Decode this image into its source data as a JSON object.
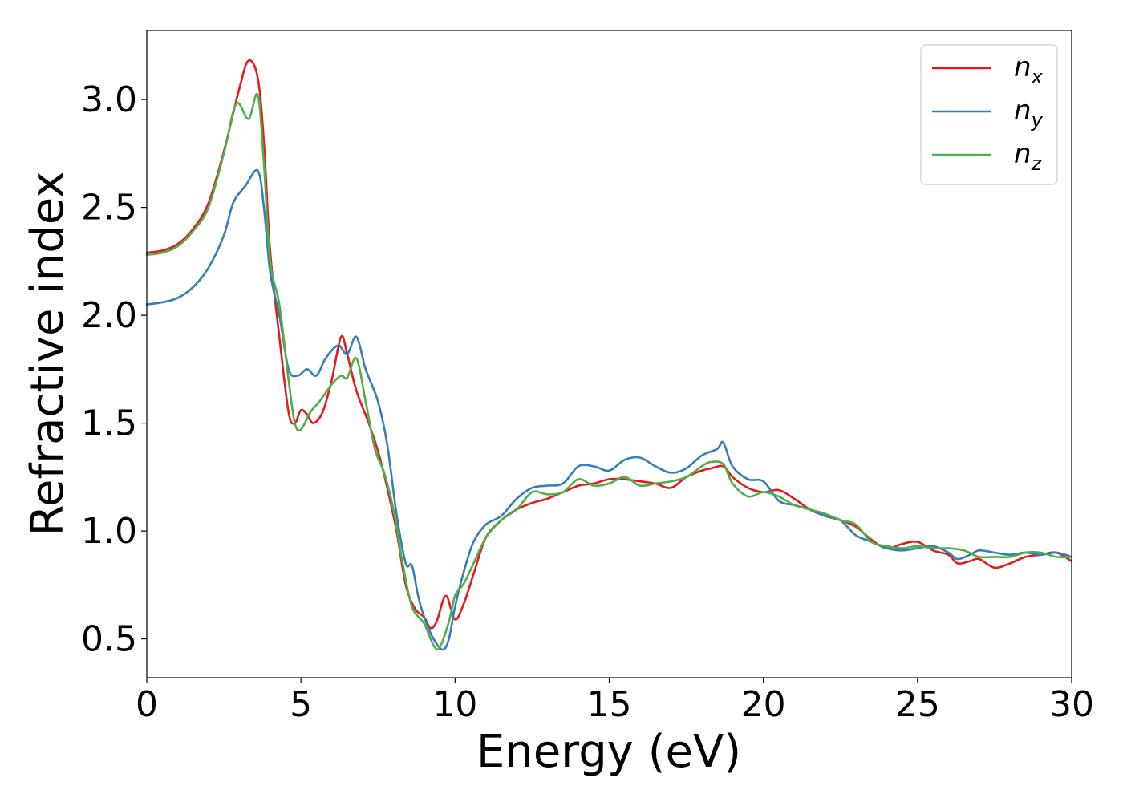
{
  "chart_data": {
    "type": "line",
    "title": "",
    "xlabel": "Energy (eV)",
    "ylabel": "Refractive index",
    "xlim": [
      0,
      30
    ],
    "ylim": [
      0.32,
      3.32
    ],
    "xticks": [
      0,
      5,
      10,
      15,
      20,
      25,
      30
    ],
    "xtick_labels": [
      "0",
      "5",
      "10",
      "15",
      "20",
      "25",
      "30"
    ],
    "yticks": [
      0.5,
      1.0,
      1.5,
      2.0,
      2.5,
      3.0
    ],
    "ytick_labels": [
      "0.5",
      "1.0",
      "1.5",
      "2.0",
      "2.5",
      "3.0"
    ],
    "grid": false,
    "legend_position": "top-right",
    "series": [
      {
        "name": "n_x",
        "label_main": "n",
        "label_sub": "x",
        "color": "#e41a1c",
        "points": [
          [
            0,
            2.29
          ],
          [
            0.5,
            2.3
          ],
          [
            1,
            2.33
          ],
          [
            1.5,
            2.4
          ],
          [
            2,
            2.52
          ],
          [
            2.5,
            2.76
          ],
          [
            3,
            3.05
          ],
          [
            3.3,
            3.18
          ],
          [
            3.6,
            3.1
          ],
          [
            3.8,
            2.8
          ],
          [
            4.0,
            2.3
          ],
          [
            4.3,
            1.9
          ],
          [
            4.6,
            1.55
          ],
          [
            4.8,
            1.5
          ],
          [
            5.0,
            1.56
          ],
          [
            5.2,
            1.54
          ],
          [
            5.4,
            1.5
          ],
          [
            5.7,
            1.55
          ],
          [
            6.0,
            1.7
          ],
          [
            6.3,
            1.9
          ],
          [
            6.5,
            1.82
          ],
          [
            6.8,
            1.65
          ],
          [
            7.2,
            1.5
          ],
          [
            7.5,
            1.37
          ],
          [
            7.8,
            1.2
          ],
          [
            8.1,
            1.0
          ],
          [
            8.4,
            0.75
          ],
          [
            8.7,
            0.64
          ],
          [
            9.0,
            0.6
          ],
          [
            9.2,
            0.55
          ],
          [
            9.4,
            0.58
          ],
          [
            9.7,
            0.7
          ],
          [
            10.0,
            0.59
          ],
          [
            10.3,
            0.67
          ],
          [
            10.6,
            0.8
          ],
          [
            11.0,
            0.97
          ],
          [
            11.5,
            1.05
          ],
          [
            12,
            1.1
          ],
          [
            12.5,
            1.13
          ],
          [
            13,
            1.15
          ],
          [
            13.5,
            1.18
          ],
          [
            14,
            1.21
          ],
          [
            14.5,
            1.22
          ],
          [
            15,
            1.24
          ],
          [
            15.5,
            1.24
          ],
          [
            16,
            1.23
          ],
          [
            16.5,
            1.22
          ],
          [
            17,
            1.2
          ],
          [
            17.5,
            1.25
          ],
          [
            18,
            1.28
          ],
          [
            18.3,
            1.29
          ],
          [
            18.7,
            1.3
          ],
          [
            19.0,
            1.25
          ],
          [
            19.5,
            1.2
          ],
          [
            20,
            1.18
          ],
          [
            20.5,
            1.19
          ],
          [
            21,
            1.15
          ],
          [
            21.5,
            1.1
          ],
          [
            22,
            1.07
          ],
          [
            22.5,
            1.05
          ],
          [
            23,
            1.02
          ],
          [
            23.5,
            0.96
          ],
          [
            24,
            0.92
          ],
          [
            24.5,
            0.94
          ],
          [
            25,
            0.95
          ],
          [
            25.5,
            0.91
          ],
          [
            26,
            0.89
          ],
          [
            26.3,
            0.85
          ],
          [
            26.7,
            0.86
          ],
          [
            27,
            0.87
          ],
          [
            27.5,
            0.83
          ],
          [
            28,
            0.85
          ],
          [
            28.5,
            0.88
          ],
          [
            29,
            0.89
          ],
          [
            29.5,
            0.9
          ],
          [
            30,
            0.86
          ]
        ]
      },
      {
        "name": "n_y",
        "label_main": "n",
        "label_sub": "y",
        "color": "#377eb8",
        "points": [
          [
            0,
            2.05
          ],
          [
            0.5,
            2.06
          ],
          [
            1,
            2.08
          ],
          [
            1.5,
            2.13
          ],
          [
            2,
            2.22
          ],
          [
            2.5,
            2.37
          ],
          [
            2.8,
            2.52
          ],
          [
            3.2,
            2.6
          ],
          [
            3.6,
            2.67
          ],
          [
            3.8,
            2.5
          ],
          [
            4.0,
            2.2
          ],
          [
            4.3,
            2.0
          ],
          [
            4.6,
            1.75
          ],
          [
            4.9,
            1.72
          ],
          [
            5.2,
            1.75
          ],
          [
            5.5,
            1.72
          ],
          [
            5.8,
            1.8
          ],
          [
            6.2,
            1.86
          ],
          [
            6.5,
            1.82
          ],
          [
            6.8,
            1.9
          ],
          [
            7.1,
            1.75
          ],
          [
            7.5,
            1.6
          ],
          [
            7.8,
            1.4
          ],
          [
            8.1,
            1.08
          ],
          [
            8.4,
            0.85
          ],
          [
            8.6,
            0.84
          ],
          [
            8.8,
            0.7
          ],
          [
            9.0,
            0.6
          ],
          [
            9.3,
            0.5
          ],
          [
            9.6,
            0.45
          ],
          [
            9.8,
            0.5
          ],
          [
            10.0,
            0.65
          ],
          [
            10.3,
            0.82
          ],
          [
            10.6,
            0.95
          ],
          [
            11,
            1.03
          ],
          [
            11.5,
            1.07
          ],
          [
            12,
            1.15
          ],
          [
            12.5,
            1.2
          ],
          [
            13,
            1.21
          ],
          [
            13.5,
            1.22
          ],
          [
            14,
            1.3
          ],
          [
            14.5,
            1.3
          ],
          [
            15,
            1.28
          ],
          [
            15.5,
            1.33
          ],
          [
            16,
            1.34
          ],
          [
            16.5,
            1.3
          ],
          [
            17,
            1.27
          ],
          [
            17.5,
            1.29
          ],
          [
            18,
            1.35
          ],
          [
            18.5,
            1.38
          ],
          [
            18.7,
            1.41
          ],
          [
            19.0,
            1.3
          ],
          [
            19.5,
            1.24
          ],
          [
            20,
            1.23
          ],
          [
            20.5,
            1.14
          ],
          [
            21,
            1.12
          ],
          [
            21.5,
            1.1
          ],
          [
            22,
            1.07
          ],
          [
            22.5,
            1.05
          ],
          [
            23,
            0.98
          ],
          [
            23.5,
            0.95
          ],
          [
            24,
            0.92
          ],
          [
            24.5,
            0.91
          ],
          [
            25,
            0.92
          ],
          [
            25.5,
            0.93
          ],
          [
            26,
            0.9
          ],
          [
            26.3,
            0.87
          ],
          [
            26.7,
            0.89
          ],
          [
            27,
            0.91
          ],
          [
            27.5,
            0.9
          ],
          [
            28,
            0.89
          ],
          [
            28.5,
            0.9
          ],
          [
            29,
            0.89
          ],
          [
            29.5,
            0.9
          ],
          [
            30,
            0.88
          ]
        ]
      },
      {
        "name": "n_z",
        "label_main": "n",
        "label_sub": "z",
        "color": "#4daf4a",
        "points": [
          [
            0,
            2.28
          ],
          [
            0.5,
            2.29
          ],
          [
            1,
            2.32
          ],
          [
            1.5,
            2.39
          ],
          [
            2,
            2.5
          ],
          [
            2.5,
            2.75
          ],
          [
            2.9,
            2.98
          ],
          [
            3.3,
            2.91
          ],
          [
            3.6,
            3.02
          ],
          [
            3.8,
            2.7
          ],
          [
            4.0,
            2.25
          ],
          [
            4.3,
            2.05
          ],
          [
            4.6,
            1.7
          ],
          [
            4.8,
            1.5
          ],
          [
            5.0,
            1.47
          ],
          [
            5.3,
            1.55
          ],
          [
            5.6,
            1.6
          ],
          [
            6.0,
            1.68
          ],
          [
            6.3,
            1.72
          ],
          [
            6.5,
            1.71
          ],
          [
            6.8,
            1.8
          ],
          [
            7.1,
            1.6
          ],
          [
            7.4,
            1.38
          ],
          [
            7.7,
            1.27
          ],
          [
            8.0,
            1.1
          ],
          [
            8.3,
            0.85
          ],
          [
            8.6,
            0.65
          ],
          [
            9.0,
            0.57
          ],
          [
            9.3,
            0.47
          ],
          [
            9.5,
            0.46
          ],
          [
            9.8,
            0.58
          ],
          [
            10.0,
            0.7
          ],
          [
            10.3,
            0.76
          ],
          [
            10.6,
            0.85
          ],
          [
            11.0,
            0.97
          ],
          [
            11.5,
            1.05
          ],
          [
            12,
            1.1
          ],
          [
            12.5,
            1.18
          ],
          [
            13,
            1.17
          ],
          [
            13.5,
            1.18
          ],
          [
            14,
            1.24
          ],
          [
            14.5,
            1.21
          ],
          [
            15,
            1.22
          ],
          [
            15.5,
            1.25
          ],
          [
            16,
            1.21
          ],
          [
            16.5,
            1.22
          ],
          [
            17,
            1.23
          ],
          [
            17.5,
            1.25
          ],
          [
            18,
            1.3
          ],
          [
            18.3,
            1.32
          ],
          [
            18.7,
            1.31
          ],
          [
            19.0,
            1.22
          ],
          [
            19.5,
            1.16
          ],
          [
            20,
            1.18
          ],
          [
            20.5,
            1.16
          ],
          [
            21,
            1.12
          ],
          [
            21.5,
            1.1
          ],
          [
            22,
            1.08
          ],
          [
            22.5,
            1.05
          ],
          [
            23,
            1.03
          ],
          [
            23.5,
            0.95
          ],
          [
            24,
            0.93
          ],
          [
            24.5,
            0.92
          ],
          [
            25,
            0.93
          ],
          [
            25.5,
            0.92
          ],
          [
            26,
            0.92
          ],
          [
            26.5,
            0.91
          ],
          [
            27,
            0.88
          ],
          [
            27.5,
            0.88
          ],
          [
            28,
            0.88
          ],
          [
            28.5,
            0.9
          ],
          [
            29,
            0.9
          ],
          [
            29.5,
            0.88
          ],
          [
            30,
            0.88
          ]
        ]
      }
    ]
  }
}
